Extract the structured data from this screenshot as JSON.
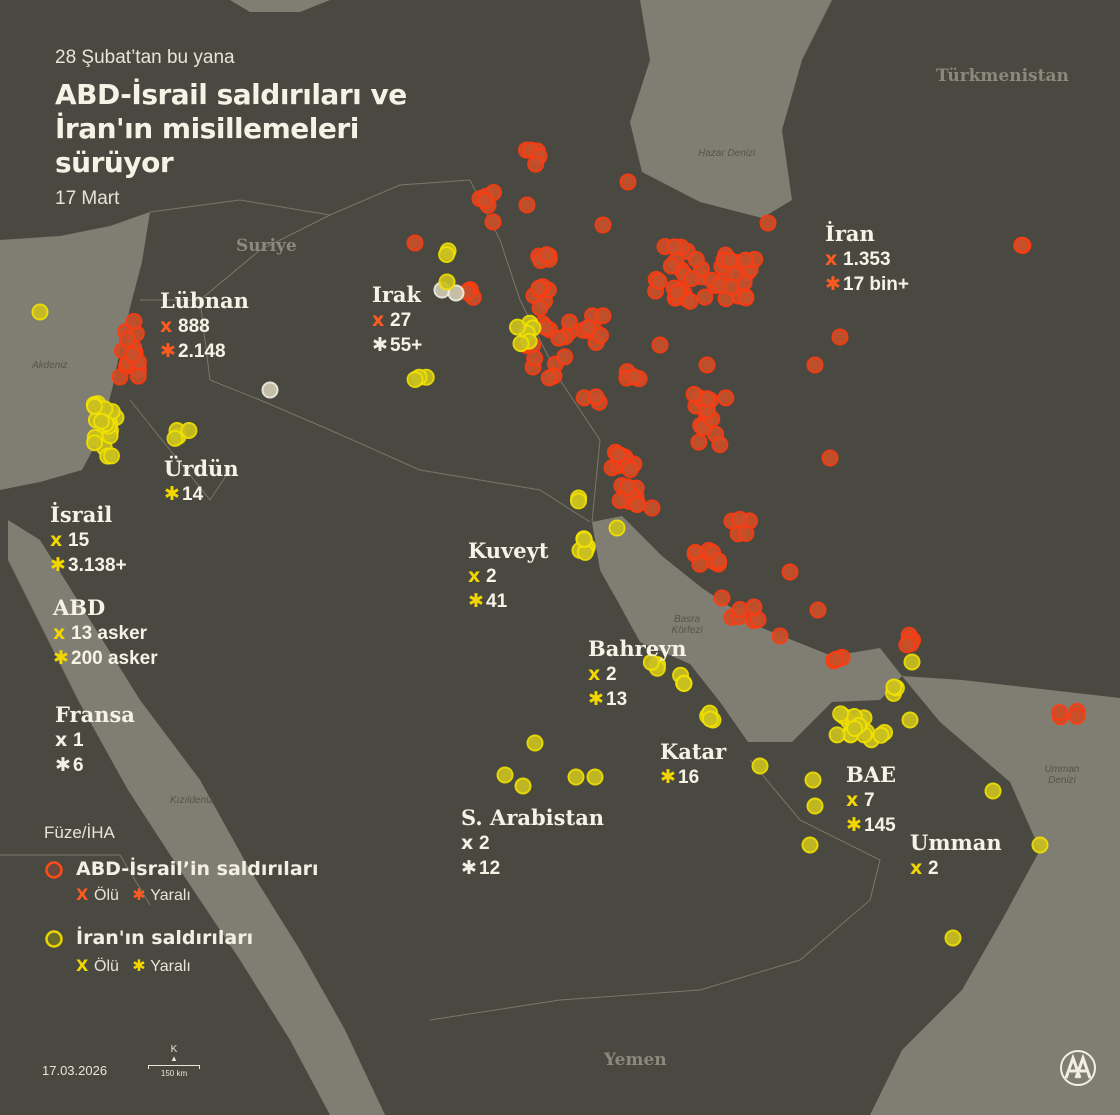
{
  "header": {
    "subtitle": "28 Şubat’tan bu yana",
    "title_lines": [
      "ABD-İsrail saldırıları ve",
      "İran'ın misillemeleri",
      "sürüyor"
    ],
    "date": "17 Mart"
  },
  "colors": {
    "land": "#4a4941",
    "water": "#807e72",
    "us_israel": "#ff5a1f",
    "iran": "#f2d600",
    "neutral": "#f3efe4"
  },
  "geo_labels": {
    "suriye": "Suriye",
    "turkmenistan": "Türkmenistan",
    "yemen": "Yemen",
    "hazar": "Hazar Denizi",
    "akdeniz": "Akdeniz",
    "basra": "Basra Körfezi",
    "kizildeniz": "Kızıldeniz",
    "umman_denizi": "Umman Denizi"
  },
  "countries": [
    {
      "name": "Lübnan",
      "color": "us_israel",
      "stats": [
        {
          "type": "dead",
          "value": "888"
        },
        {
          "type": "injured",
          "value": "2.148"
        }
      ]
    },
    {
      "name": "Irak",
      "color": "mixed",
      "stats": [
        {
          "type": "dead",
          "value": "27",
          "color": "us_israel"
        },
        {
          "type": "injured",
          "value": "55+",
          "color": "neutral"
        }
      ]
    },
    {
      "name": "İran",
      "color": "us_israel",
      "stats": [
        {
          "type": "dead",
          "value": "1.353"
        },
        {
          "type": "injured",
          "value": "17 bin+"
        }
      ]
    },
    {
      "name": "Ürdün",
      "color": "iran",
      "stats": [
        {
          "type": "injured",
          "value": "14"
        }
      ]
    },
    {
      "name": "İsrail",
      "color": "iran",
      "stats": [
        {
          "type": "dead",
          "value": "15"
        },
        {
          "type": "injured",
          "value": "3.138+"
        }
      ]
    },
    {
      "name": "ABD",
      "color": "iran",
      "stats": [
        {
          "type": "dead",
          "value": "13 asker"
        },
        {
          "type": "injured",
          "value": "200 asker"
        }
      ]
    },
    {
      "name": "Fransa",
      "color": "neutral",
      "stats": [
        {
          "type": "dead",
          "value": "1"
        },
        {
          "type": "injured",
          "value": "6"
        }
      ]
    },
    {
      "name": "Kuveyt",
      "color": "iran",
      "stats": [
        {
          "type": "dead",
          "value": "2"
        },
        {
          "type": "injured",
          "value": "41"
        }
      ]
    },
    {
      "name": "Bahreyn",
      "color": "iran",
      "stats": [
        {
          "type": "dead",
          "value": "2"
        },
        {
          "type": "injured",
          "value": "13"
        }
      ]
    },
    {
      "name": "Katar",
      "color": "iran",
      "stats": [
        {
          "type": "injured",
          "value": "16"
        }
      ]
    },
    {
      "name": "BAE",
      "color": "iran",
      "stats": [
        {
          "type": "dead",
          "value": "7"
        },
        {
          "type": "injured",
          "value": "145"
        }
      ]
    },
    {
      "name": "S. Arabistan",
      "color": "neutral",
      "stats": [
        {
          "type": "dead",
          "value": "2"
        },
        {
          "type": "injured",
          "value": "12"
        }
      ]
    },
    {
      "name": "Umman",
      "color": "iran",
      "stats": [
        {
          "type": "dead",
          "value": "2"
        }
      ]
    }
  ],
  "legend": {
    "title": "Füze/İHA",
    "us_israel": "ABD-İsrail’in saldırıları",
    "iran": "İran'ın saldırıları",
    "dead": "Ölü",
    "injured": "Yaralı"
  },
  "footer": {
    "date": "17.03.2026",
    "north": "K",
    "scale": "150 km",
    "logo": "AA"
  }
}
